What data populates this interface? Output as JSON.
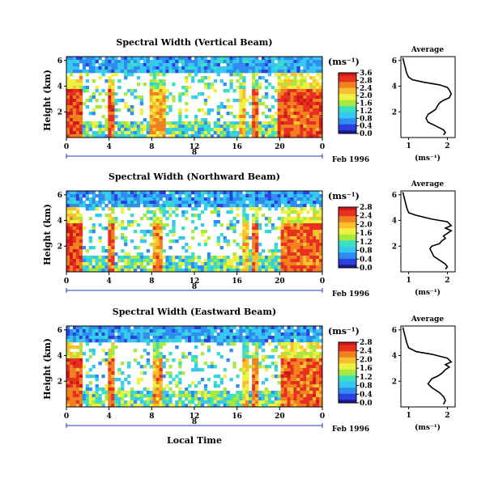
{
  "common": {
    "x_ticks": [
      "0",
      "4",
      "8",
      "12",
      "16",
      "20",
      "0"
    ],
    "date_day": "8",
    "date_label": "Feb 1996",
    "ylabel": "Height (km)",
    "y_ticks": [
      "6",
      "4",
      "2"
    ],
    "colorbar_unit": "(ms⁻¹)",
    "colorbar_ticks": [
      "3.6",
      "2.8",
      "2.4",
      "2.0",
      "1.6",
      "1.2",
      "0.8",
      "0.4",
      "0.0"
    ],
    "avg_title": "Average",
    "avg_unit": "(ms⁻¹)",
    "avg_x_ticks": [
      "1",
      "2"
    ],
    "avg_y_ticks": [
      "6",
      "4",
      "2"
    ],
    "xlabel": "Local Time"
  },
  "colors": {
    "scale": [
      "#1a1a8c",
      "#2a40e0",
      "#2f8cf0",
      "#36c8f0",
      "#3ae0c0",
      "#a8e840",
      "#f0f040",
      "#f8c030",
      "#f08020",
      "#e83020",
      "#d01818"
    ]
  },
  "chart_data": [
    {
      "type": "heatmap",
      "title": "Spectral Width (Vertical Beam)",
      "xlabel": "",
      "ylabel": "Height (km)",
      "xlim": [
        0,
        24
      ],
      "ylim": [
        0,
        6.3
      ],
      "colorbar": {
        "label": "(ms⁻¹)",
        "range": [
          0.0,
          3.6
        ],
        "ticks": [
          "3.6",
          "2.8",
          "2.4",
          "2.0",
          "1.6",
          "1.2",
          "0.8",
          "0.4",
          "0.0"
        ]
      },
      "bands": [
        {
          "x0": 0.0,
          "x1": 1.6,
          "level": 0.88
        },
        {
          "x0": 3.8,
          "x1": 4.6,
          "level": 0.85
        },
        {
          "x0": 7.8,
          "x1": 9.2,
          "level": 0.72
        },
        {
          "x0": 16.2,
          "x1": 16.9,
          "level": 0.68
        },
        {
          "x0": 17.4,
          "x1": 18.0,
          "level": 0.8
        },
        {
          "x0": 19.9,
          "x1": 24.0,
          "level": 0.86
        }
      ],
      "top_layer_km": 3.9,
      "seed": 11
    },
    {
      "type": "heatmap",
      "title": "Spectral Width (Northward Beam)",
      "xlabel": "",
      "ylabel": "Height (km)",
      "xlim": [
        0,
        24
      ],
      "ylim": [
        0,
        6.3
      ],
      "colorbar": {
        "label": "(ms⁻¹)",
        "range": [
          0.0,
          2.8
        ],
        "ticks": [
          "2.8",
          "2.4",
          "2.0",
          "1.6",
          "1.2",
          "0.8",
          "0.4",
          "0.0"
        ]
      },
      "bands": [
        {
          "x0": 0.0,
          "x1": 1.6,
          "level": 0.88
        },
        {
          "x0": 3.8,
          "x1": 4.6,
          "level": 0.82
        },
        {
          "x0": 8.0,
          "x1": 9.0,
          "level": 0.76
        },
        {
          "x0": 16.6,
          "x1": 17.0,
          "level": 0.66
        },
        {
          "x0": 17.4,
          "x1": 18.0,
          "level": 0.8
        },
        {
          "x0": 20.0,
          "x1": 24.0,
          "level": 0.82
        }
      ],
      "top_layer_km": 3.9,
      "seed": 23
    },
    {
      "type": "heatmap",
      "title": "Spectral Width (Eastward Beam)",
      "xlabel": "Local Time",
      "ylabel": "Height (km)",
      "xlim": [
        0,
        24
      ],
      "ylim": [
        0,
        6.3
      ],
      "colorbar": {
        "label": "(ms⁻¹)",
        "range": [
          0.0,
          2.8
        ],
        "ticks": [
          "2.8",
          "2.4",
          "2.0",
          "1.6",
          "1.2",
          "0.8",
          "0.4",
          "0.0"
        ]
      },
      "bands": [
        {
          "x0": 0.0,
          "x1": 1.6,
          "level": 0.86
        },
        {
          "x0": 3.8,
          "x1": 4.6,
          "level": 0.82
        },
        {
          "x0": 8.0,
          "x1": 9.0,
          "level": 0.74
        },
        {
          "x0": 16.6,
          "x1": 17.0,
          "level": 0.66
        },
        {
          "x0": 17.4,
          "x1": 18.0,
          "level": 0.78
        },
        {
          "x0": 20.0,
          "x1": 24.0,
          "level": 0.84
        }
      ],
      "top_layer_km": 3.9,
      "seed": 37
    },
    {
      "type": "line",
      "title": "Average",
      "xlabel": "(ms⁻¹)",
      "ylabel": "",
      "xlim": [
        0.8,
        2.2
      ],
      "ylim": [
        0,
        6.3
      ],
      "x": [
        0.85,
        0.9,
        0.95,
        1.0,
        1.1,
        1.4,
        1.8,
        2.0,
        2.05,
        2.1,
        2.05,
        1.9,
        1.8,
        1.75,
        1.7,
        1.6,
        1.5,
        1.45,
        1.5,
        1.7,
        1.9,
        1.95,
        1.9
      ],
      "y": [
        6.2,
        5.6,
        5.0,
        4.7,
        4.5,
        4.3,
        4.1,
        3.9,
        3.7,
        3.4,
        3.1,
        2.9,
        2.7,
        2.5,
        2.2,
        2.0,
        1.8,
        1.5,
        1.2,
        0.9,
        0.6,
        0.4,
        0.2
      ]
    },
    {
      "type": "line",
      "title": "Average",
      "xlabel": "(ms⁻¹)",
      "ylabel": "",
      "xlim": [
        0.8,
        2.2
      ],
      "ylim": [
        0,
        6.3
      ],
      "x": [
        0.85,
        0.9,
        0.95,
        1.0,
        1.2,
        1.6,
        2.0,
        2.1,
        1.95,
        2.1,
        2.0,
        1.9,
        1.95,
        1.85,
        1.8,
        1.6,
        1.55,
        1.6,
        1.65,
        1.8,
        1.95,
        2.0,
        1.95
      ],
      "y": [
        6.2,
        5.6,
        5.0,
        4.6,
        4.4,
        4.1,
        3.9,
        3.6,
        3.4,
        3.2,
        3.0,
        2.8,
        2.6,
        2.4,
        2.2,
        2.0,
        1.8,
        1.5,
        1.2,
        0.9,
        0.6,
        0.4,
        0.2
      ]
    },
    {
      "type": "line",
      "title": "Average",
      "xlabel": "(ms⁻¹)",
      "ylabel": "",
      "xlim": [
        0.8,
        2.2
      ],
      "ylim": [
        0,
        6.3
      ],
      "x": [
        0.85,
        0.9,
        0.95,
        1.0,
        1.2,
        1.6,
        2.0,
        2.1,
        1.95,
        2.05,
        1.95,
        1.85,
        1.75,
        1.6,
        1.55,
        1.5,
        1.6,
        1.8,
        1.9,
        1.95,
        1.9
      ],
      "y": [
        6.2,
        5.6,
        5.0,
        4.6,
        4.3,
        4.1,
        3.8,
        3.5,
        3.3,
        3.1,
        2.9,
        2.6,
        2.4,
        2.2,
        2.0,
        1.8,
        1.5,
        1.1,
        0.8,
        0.5,
        0.2
      ]
    }
  ]
}
